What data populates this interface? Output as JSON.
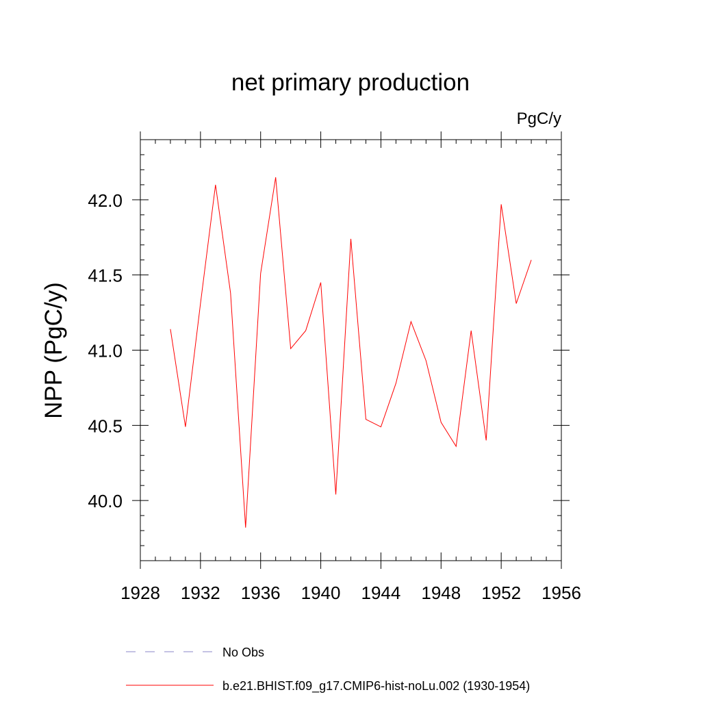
{
  "chart_data": {
    "type": "line",
    "title": "net primary production",
    "units_label": "PgC/y",
    "xlabel": "",
    "ylabel": "NPP  (PgC/y)",
    "xlim": [
      1928,
      1956
    ],
    "ylim": [
      39.6,
      42.4
    ],
    "x_ticks": [
      1928,
      1932,
      1936,
      1940,
      1944,
      1948,
      1952,
      1956
    ],
    "x_tick_labels": [
      "1928",
      "1932",
      "1936",
      "1940",
      "1944",
      "1948",
      "1952",
      "1956"
    ],
    "y_ticks": [
      40.0,
      40.5,
      41.0,
      41.5,
      42.0
    ],
    "y_tick_labels": [
      "40.0",
      "40.5",
      "41.0",
      "41.5",
      "42.0"
    ],
    "grid": false,
    "legend_position": "bottom",
    "series": [
      {
        "name": "No Obs",
        "color": "#8a84c8",
        "dash": "dashed",
        "x": [],
        "values": []
      },
      {
        "name": "b.e21.BHIST.f09_g17.CMIP6-hist-noLu.002 (1930-1954)",
        "color": "#ff0000",
        "dash": "solid",
        "x": [
          1930,
          1931,
          1932,
          1933,
          1934,
          1935,
          1936,
          1937,
          1938,
          1939,
          1940,
          1941,
          1942,
          1943,
          1944,
          1945,
          1946,
          1947,
          1948,
          1949,
          1950,
          1951,
          1952,
          1953,
          1954
        ],
        "values": [
          41.14,
          40.49,
          41.31,
          42.1,
          41.38,
          39.82,
          41.51,
          42.15,
          41.01,
          41.13,
          41.45,
          40.04,
          41.74,
          40.54,
          40.49,
          40.78,
          41.19,
          40.93,
          40.52,
          40.36,
          41.13,
          40.4,
          41.97,
          41.31,
          41.6
        ]
      }
    ]
  }
}
